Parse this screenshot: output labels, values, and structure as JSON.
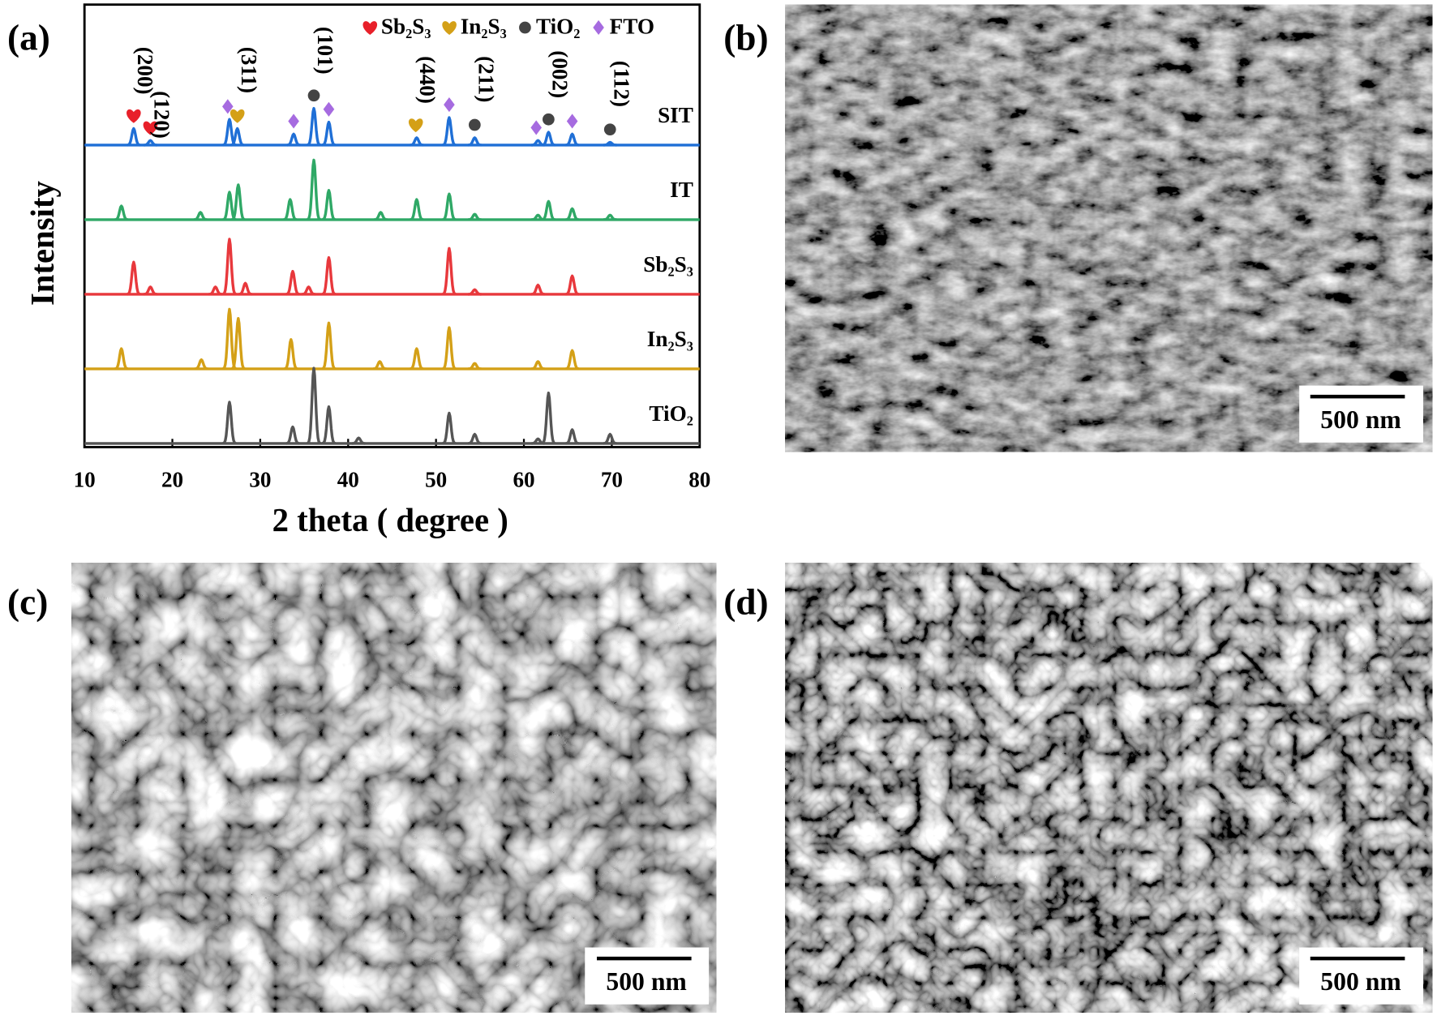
{
  "chart_data": {
    "type": "line",
    "panel_label": "(a)",
    "xlabel": "2 theta ( degree )",
    "ylabel": "Intensity",
    "xlim": [
      10,
      80
    ],
    "xticks": [
      10,
      20,
      30,
      40,
      50,
      60,
      70,
      80
    ],
    "series": [
      {
        "name": "SIT",
        "color": "#1f6fd6",
        "x": [
          15.6,
          17.5,
          26.5,
          27.4,
          33.8,
          36.1,
          37.8,
          47.8,
          51.5,
          54.4,
          61.6,
          62.8,
          65.5,
          69.8
        ],
        "values": [
          18,
          5,
          28,
          18,
          12,
          40,
          25,
          8,
          30,
          8,
          5,
          14,
          12,
          3
        ]
      },
      {
        "name": "IT",
        "color": "#2fa866",
        "x": [
          14.2,
          23.2,
          26.5,
          27.5,
          33.4,
          36.1,
          37.8,
          43.7,
          47.8,
          51.5,
          54.4,
          61.6,
          62.8,
          65.5,
          69.8
        ],
        "values": [
          15,
          8,
          30,
          38,
          22,
          65,
          32,
          8,
          22,
          28,
          6,
          5,
          20,
          12,
          5
        ]
      },
      {
        "name": "Sb₂S₃",
        "color": "#e8383c",
        "x": [
          15.6,
          17.5,
          24.9,
          26.5,
          28.3,
          33.7,
          35.5,
          37.8,
          51.5,
          54.4,
          61.6,
          65.5
        ],
        "values": [
          35,
          8,
          8,
          60,
          12,
          25,
          8,
          40,
          50,
          5,
          10,
          20
        ]
      },
      {
        "name": "In₂S₃",
        "color": "#d4a017",
        "x": [
          14.2,
          23.3,
          26.5,
          27.5,
          33.5,
          37.8,
          43.6,
          47.8,
          51.5,
          54.4,
          61.6,
          65.5
        ],
        "values": [
          22,
          10,
          65,
          55,
          32,
          50,
          8,
          22,
          45,
          6,
          8,
          20
        ]
      },
      {
        "name": "TiO₂",
        "color": "#555555",
        "x": [
          26.5,
          33.7,
          36.1,
          37.8,
          41.2,
          51.5,
          54.4,
          61.6,
          62.8,
          65.5,
          69.8
        ],
        "values": [
          45,
          18,
          82,
          40,
          6,
          33,
          10,
          5,
          55,
          15,
          10
        ]
      }
    ],
    "phases": [
      {
        "name": "Sb₂S₃",
        "color": "#e8202a",
        "shape": "heart",
        "x": [
          15.6,
          17.5
        ]
      },
      {
        "name": "In₂S₃",
        "color": "#d4a017",
        "shape": "heart",
        "x": [
          27.4,
          47.7
        ]
      },
      {
        "name": "TiO₂",
        "color": "#444444",
        "shape": "circle",
        "x": [
          36.1,
          54.4,
          62.8,
          69.8
        ]
      },
      {
        "name": "FTO",
        "color": "#a66be0",
        "shape": "diamond",
        "x": [
          26.3,
          33.8,
          37.8,
          51.5,
          61.4,
          65.5
        ]
      }
    ],
    "annotations": [
      {
        "text": "(200)",
        "x": 15.6
      },
      {
        "text": "(120)",
        "x": 17.5
      },
      {
        "text": "(311)",
        "x": 27.4
      },
      {
        "text": "(101)",
        "x": 36.1
      },
      {
        "text": "(440)",
        "x": 47.7
      },
      {
        "text": "(211)",
        "x": 54.4
      },
      {
        "text": "(002)",
        "x": 62.8
      },
      {
        "text": "(112)",
        "x": 69.8
      }
    ]
  },
  "images": [
    {
      "panel_label": "(b)",
      "scale_bar": "500 nm"
    },
    {
      "panel_label": "(c)",
      "scale_bar": "500 nm"
    },
    {
      "panel_label": "(d)",
      "scale_bar": "500 nm"
    }
  ]
}
